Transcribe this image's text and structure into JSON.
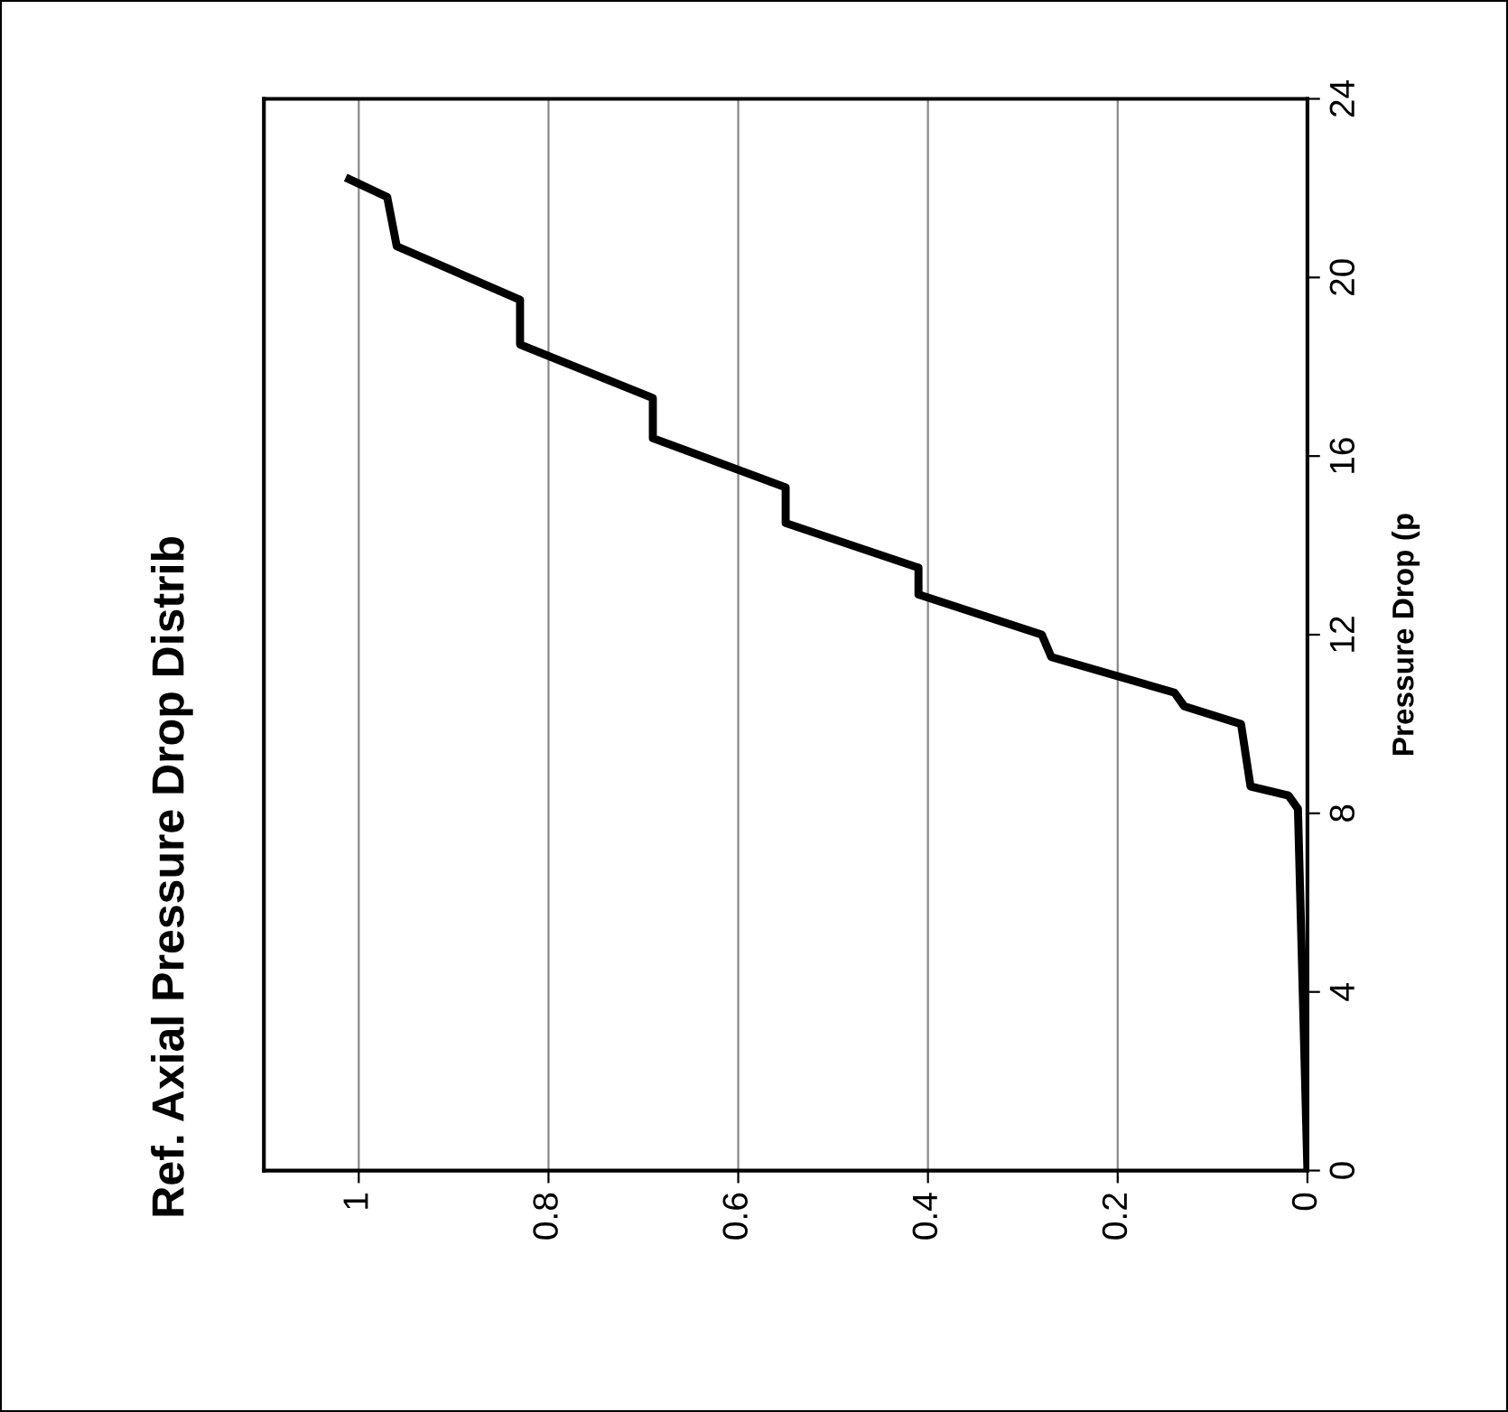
{
  "chart_data": {
    "type": "line",
    "title": "Ref. Axial Pressure Drop Distrib",
    "ylabel": "Pressure Drop (p",
    "series": [
      {
        "color": "#000000",
        "x": [
          0,
          0.01,
          0.02,
          0.06,
          0.07,
          0.13,
          0.14,
          0.27,
          0.28,
          0.41,
          0.41,
          0.55,
          0.55,
          0.69,
          0.69,
          0.83,
          0.83,
          0.96,
          0.97,
          1.01
        ],
        "values": [
          0,
          8.1,
          8.4,
          8.6,
          10.0,
          10.4,
          10.7,
          11.5,
          12.0,
          12.9,
          13.5,
          14.5,
          15.3,
          16.4,
          17.3,
          18.5,
          19.5,
          20.7,
          21.8,
          22.2
        ]
      }
    ],
    "xlim": [
      1.1,
      0
    ],
    "xticks": [
      0,
      0.2,
      0.4,
      0.6,
      0.8,
      1
    ],
    "ylim": [
      0,
      24
    ],
    "yticks": [
      0,
      4,
      8,
      12,
      16,
      20,
      24
    ],
    "grid": "x",
    "marker": "none",
    "line_style": "solid",
    "legend": false
  }
}
